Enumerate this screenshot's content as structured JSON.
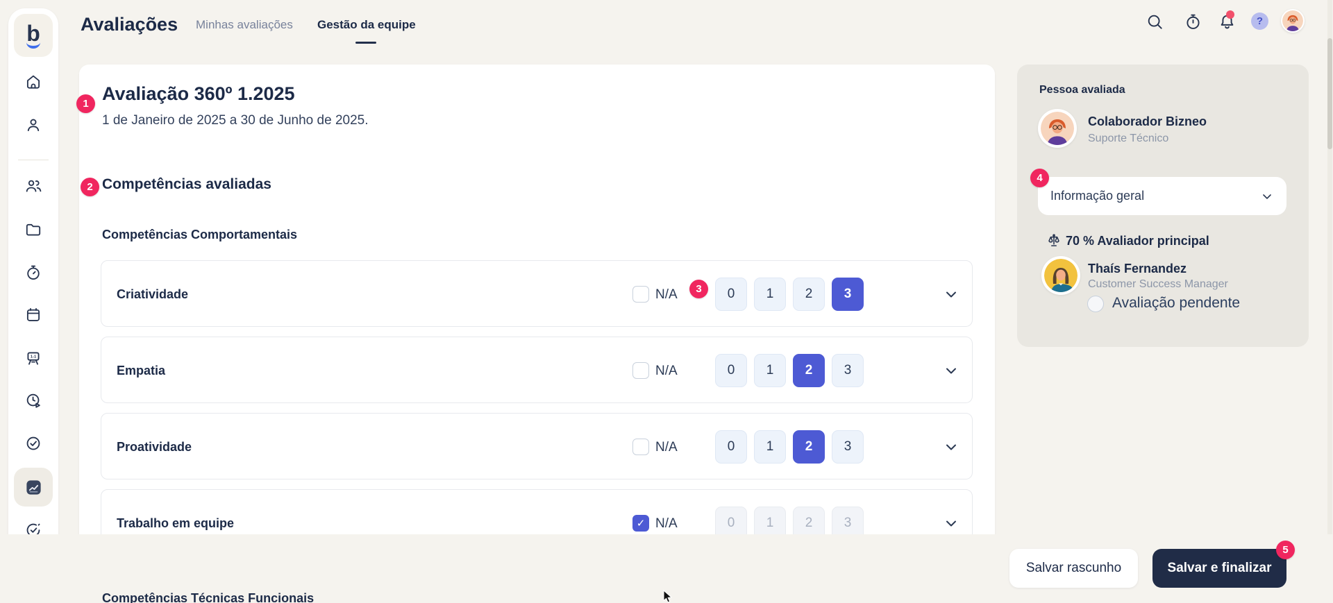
{
  "logo": {
    "letter": "b"
  },
  "header": {
    "title": "Avaliações",
    "tabs": [
      {
        "label": "Minhas avaliações",
        "active": false
      },
      {
        "label": "Gestão da equipe",
        "active": true
      }
    ],
    "help_glyph": "?"
  },
  "evaluation": {
    "title": "Avaliação 360º 1.2025",
    "date_range": "1 de Janeiro de 2025 a 30 de Junho de 2025.",
    "section_title": "Competências avaliadas",
    "group_title": "Competências Comportamentais",
    "next_group_title": "Competências Técnicas Funcionais",
    "na_label": "N/A",
    "scale": [
      "0",
      "1",
      "2",
      "3"
    ],
    "competencies": [
      {
        "name": "Criatividade",
        "na_checked": false,
        "selected": 3
      },
      {
        "name": "Empatia",
        "na_checked": false,
        "selected": 2
      },
      {
        "name": "Proatividade",
        "na_checked": false,
        "selected": 2
      },
      {
        "name": "Trabalho em equipe",
        "na_checked": true,
        "selected": null
      }
    ]
  },
  "panel": {
    "title": "Pessoa avaliada",
    "person": {
      "name": "Colaborador Bizneo",
      "role": "Suporte Técnico"
    },
    "dropdown_value": "Informação geral",
    "weight_label": "70 % Avaliador principal",
    "evaluator": {
      "name": "Thaís Fernandez",
      "role": "Customer Success Manager",
      "status": "Avaliação pendente"
    }
  },
  "footer": {
    "save_draft_label": "Salvar rascunho",
    "save_finish_label": "Salvar e finalizar"
  },
  "annotations": [
    "1",
    "2",
    "3",
    "4",
    "5"
  ],
  "colors": {
    "accent_pink": "#F0265F",
    "accent_indigo": "#4D5AD4",
    "dark_button": "#202C47",
    "page_background": "#F5F3EE",
    "panel_background": "#E9E7E1"
  },
  "check_glyph": "✓"
}
